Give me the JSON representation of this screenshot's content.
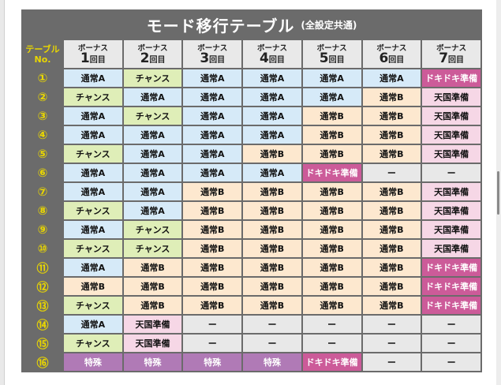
{
  "title": "モード移行テーブル",
  "subtitle": "(全設定共通)",
  "corner_label": [
    "テーブル",
    "No."
  ],
  "bonus_headers": [
    {
      "label": "ボーナス",
      "num": "1",
      "suffix": "回目"
    },
    {
      "label": "ボーナス",
      "num": "2",
      "suffix": "回目"
    },
    {
      "label": "ボーナス",
      "num": "3",
      "suffix": "回目"
    },
    {
      "label": "ボーナス",
      "num": "4",
      "suffix": "回目"
    },
    {
      "label": "ボーナス",
      "num": "5",
      "suffix": "回目"
    },
    {
      "label": "ボーナス",
      "num": "6",
      "suffix": "回目"
    },
    {
      "label": "ボーナス",
      "num": "7",
      "suffix": "回目"
    }
  ],
  "rows": [
    {
      "no": "①",
      "cells": [
        "通常A",
        "チャンス",
        "通常A",
        "通常A",
        "通常A",
        "通常A",
        "ドキドキ準備"
      ]
    },
    {
      "no": "②",
      "cells": [
        "チャンス",
        "通常A",
        "通常A",
        "通常A",
        "通常A",
        "通常B",
        "天国準備"
      ]
    },
    {
      "no": "③",
      "cells": [
        "通常A",
        "チャンス",
        "通常A",
        "通常A",
        "通常B",
        "通常B",
        "天国準備"
      ]
    },
    {
      "no": "④",
      "cells": [
        "通常A",
        "通常A",
        "通常A",
        "通常A",
        "通常B",
        "通常B",
        "天国準備"
      ]
    },
    {
      "no": "⑤",
      "cells": [
        "チャンス",
        "通常A",
        "通常A",
        "通常B",
        "通常B",
        "通常B",
        "天国準備"
      ]
    },
    {
      "no": "⑥",
      "cells": [
        "通常A",
        "通常A",
        "通常A",
        "通常A",
        "ドキドキ準備",
        "ー",
        "ー"
      ]
    },
    {
      "no": "⑦",
      "cells": [
        "通常A",
        "通常A",
        "通常B",
        "通常B",
        "通常B",
        "通常B",
        "天国準備"
      ]
    },
    {
      "no": "⑧",
      "cells": [
        "チャンス",
        "通常A",
        "通常B",
        "通常B",
        "通常B",
        "通常B",
        "天国準備"
      ]
    },
    {
      "no": "⑨",
      "cells": [
        "通常A",
        "チャンス",
        "通常B",
        "通常B",
        "通常B",
        "通常B",
        "天国準備"
      ]
    },
    {
      "no": "⑩",
      "cells": [
        "チャンス",
        "チャンス",
        "通常B",
        "通常B",
        "通常B",
        "通常B",
        "天国準備"
      ]
    },
    {
      "no": "⑪",
      "cells": [
        "通常A",
        "通常B",
        "通常B",
        "通常B",
        "通常B",
        "通常B",
        "ドキドキ準備"
      ]
    },
    {
      "no": "⑫",
      "cells": [
        "通常B",
        "通常B",
        "通常B",
        "通常B",
        "通常B",
        "通常B",
        "ドキドキ準備"
      ]
    },
    {
      "no": "⑬",
      "cells": [
        "チャンス",
        "通常B",
        "通常B",
        "通常B",
        "通常B",
        "通常B",
        "ドキドキ準備"
      ]
    },
    {
      "no": "⑭",
      "cells": [
        "通常A",
        "天国準備",
        "ー",
        "ー",
        "ー",
        "ー",
        "ー"
      ]
    },
    {
      "no": "⑮",
      "cells": [
        "チャンス",
        "天国準備",
        "ー",
        "ー",
        "ー",
        "ー",
        "ー"
      ]
    },
    {
      "no": "⑯",
      "cells": [
        "特殊",
        "特殊",
        "特殊",
        "特殊",
        "ドキドキ準備",
        "ー",
        "ー"
      ]
    }
  ],
  "colors": {
    "header_bg": "#6b6b6b",
    "number_yellow": "#e9d600",
    "通常A": "#d6eaf8",
    "通常B": "#fde8cf",
    "チャンス": "#dfeeb8",
    "天国準備": "#f6d7e6",
    "ドキドキ準備": "#cc5b99",
    "特殊": "#b07ab6",
    "ー": "#e8e8e8"
  }
}
